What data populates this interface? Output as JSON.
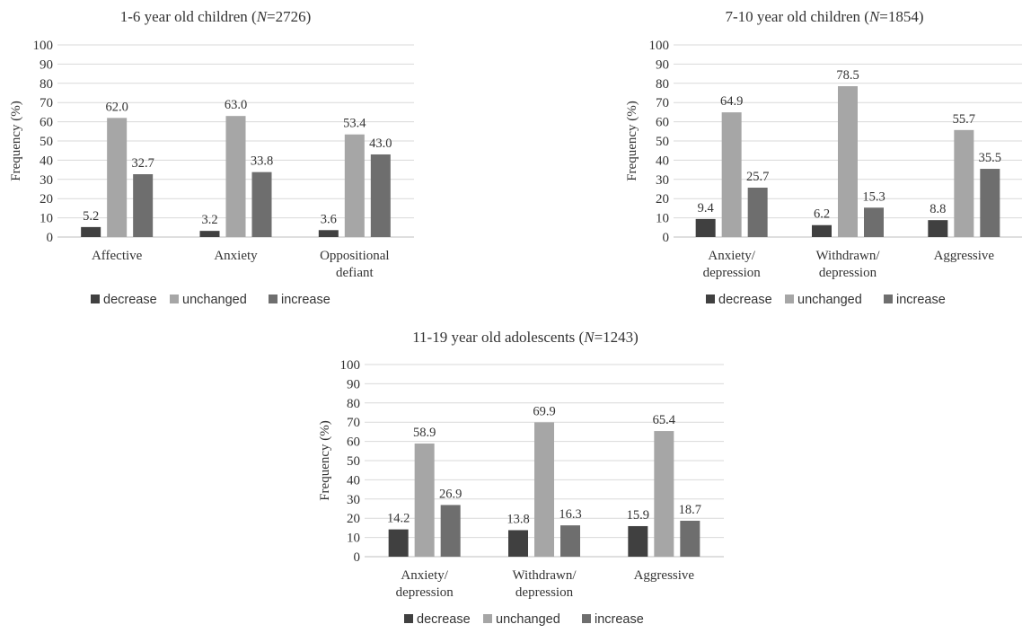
{
  "colors": {
    "decrease": "#404040",
    "unchanged": "#a6a6a6",
    "increase": "#6e6e6e"
  },
  "chart_data": [
    {
      "type": "bar",
      "title": "1-6 year old children (N=2726)",
      "title_parts": {
        "prefix": "1-6 year old children (",
        "n_italic": "N",
        "suffix": "=2726)"
      },
      "ylabel": "Frequency (%)",
      "ylim": [
        0,
        100
      ],
      "yticks": [
        "0",
        "10",
        "20",
        "30",
        "40",
        "50",
        "60",
        "70",
        "80",
        "90",
        "100"
      ],
      "categories": [
        [
          "Affective"
        ],
        [
          "Anxiety"
        ],
        [
          "Oppositional",
          "defiant"
        ]
      ],
      "series": [
        {
          "name": "decrease",
          "values": [
            5.2,
            3.2,
            3.6
          ],
          "labels": [
            "5.2",
            "3.2",
            "3.6"
          ]
        },
        {
          "name": "unchanged",
          "values": [
            62.0,
            63.0,
            53.4
          ],
          "labels": [
            "62.0",
            "63.0",
            "53.4"
          ]
        },
        {
          "name": "increase",
          "values": [
            32.7,
            33.8,
            43.0
          ],
          "labels": [
            "32.7",
            "33.8",
            "43.0"
          ]
        }
      ],
      "legend": "bottom"
    },
    {
      "type": "bar",
      "title": "7-10 year old children (N=1854)",
      "title_parts": {
        "prefix": "7-10 year old children (",
        "n_italic": "N",
        "suffix": "=1854)"
      },
      "ylabel": "Frequency (%)",
      "ylim": [
        0,
        100
      ],
      "yticks": [
        "0",
        "10",
        "20",
        "30",
        "40",
        "50",
        "60",
        "70",
        "80",
        "90",
        "100"
      ],
      "categories": [
        [
          "Anxiety/",
          "depression"
        ],
        [
          "Withdrawn/",
          "depression"
        ],
        [
          "Aggressive"
        ]
      ],
      "series": [
        {
          "name": "decrease",
          "values": [
            9.4,
            6.2,
            8.8
          ],
          "labels": [
            "9.4",
            "6.2",
            "8.8"
          ]
        },
        {
          "name": "unchanged",
          "values": [
            64.9,
            78.5,
            55.7
          ],
          "labels": [
            "64.9",
            "78.5",
            "55.7"
          ]
        },
        {
          "name": "increase",
          "values": [
            25.7,
            15.3,
            35.5
          ],
          "labels": [
            "25.7",
            "15.3",
            "35.5"
          ]
        }
      ],
      "legend": "bottom"
    },
    {
      "type": "bar",
      "title": "11-19 year old adolescents (N=1243)",
      "title_parts": {
        "prefix": "11-19 year old adolescents (",
        "n_italic": "N",
        "suffix": "=1243)"
      },
      "ylabel": "Frequency (%)",
      "ylim": [
        0,
        100
      ],
      "yticks": [
        "0",
        "10",
        "20",
        "30",
        "40",
        "50",
        "60",
        "70",
        "80",
        "90",
        "100"
      ],
      "categories": [
        [
          "Anxiety/",
          "depression"
        ],
        [
          "Withdrawn/",
          "depression"
        ],
        [
          "Aggressive"
        ]
      ],
      "series": [
        {
          "name": "decrease",
          "values": [
            14.2,
            13.8,
            15.9
          ],
          "labels": [
            "14.2",
            "13.8",
            "15.9"
          ]
        },
        {
          "name": "unchanged",
          "values": [
            58.9,
            69.9,
            65.4
          ],
          "labels": [
            "58.9",
            "69.9",
            "65.4"
          ]
        },
        {
          "name": "increase",
          "values": [
            26.9,
            16.3,
            18.7
          ],
          "labels": [
            "26.9",
            "16.3",
            "18.7"
          ]
        }
      ],
      "legend": "bottom"
    }
  ]
}
